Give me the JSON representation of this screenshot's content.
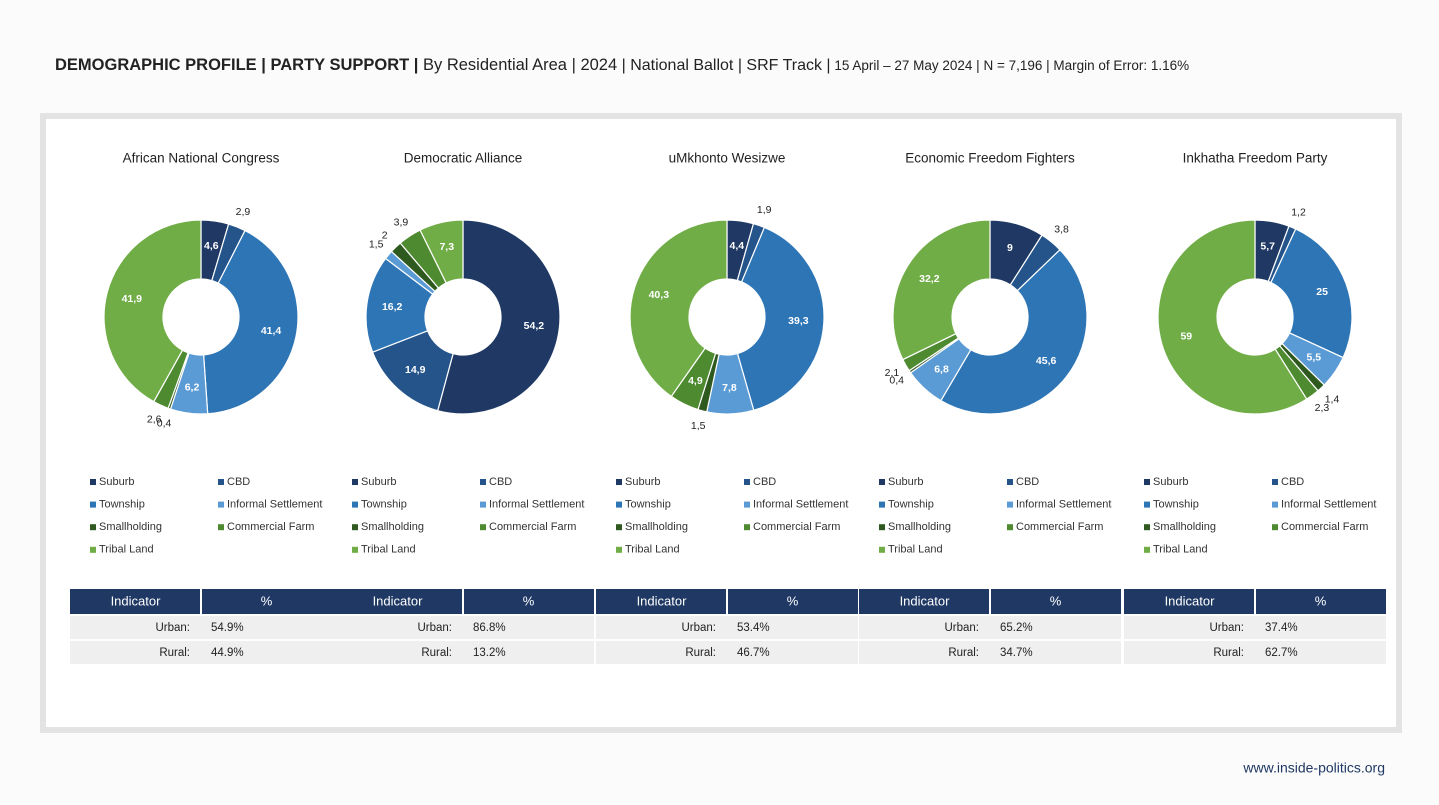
{
  "header": {
    "title": [
      "DEMOGRAPHIC PROFILE | PARTY SUPPORT |",
      " By Residential Area | 2024",
      " | National Ballot | SRF Track |",
      " 15 April – 27 May 2024 | N = 7,196 | Margin of Error: 1.16%"
    ]
  },
  "chart_data": [
    {
      "type": "donut",
      "title": "African National Congress",
      "categories": [
        "Suburb",
        "CBD",
        "Township",
        "Informal Settlement",
        "Smallholding",
        "Commercial Farm",
        "Tribal Land"
      ],
      "values": [
        4.6,
        2.9,
        41.4,
        6.2,
        0.4,
        2.6,
        41.9
      ],
      "value_labels": [
        "4,6",
        "2,9",
        "41,4",
        "6,2",
        "0,4",
        "2,6",
        "41,9"
      ],
      "colors": [
        "#1f3864",
        "#24548a",
        "#2e75b6",
        "#5b9bd5",
        "#2f5a1f",
        "#4e8a30",
        "#70ad47"
      ]
    },
    {
      "type": "donut",
      "title": "Democratic Alliance",
      "categories": [
        "Suburb",
        "CBD",
        "Township",
        "Informal Settlement",
        "Smallholding",
        "Commercial Farm",
        "Tribal Land"
      ],
      "values": [
        54.2,
        14.9,
        16.2,
        1.5,
        2,
        3.9,
        7.3
      ],
      "value_labels": [
        "54,2",
        "14,9",
        "16,2",
        "1,5",
        "2",
        "3,9",
        "7,3"
      ],
      "colors": [
        "#1f3864",
        "#24548a",
        "#2e75b6",
        "#5b9bd5",
        "#2f5a1f",
        "#4e8a30",
        "#70ad47"
      ]
    },
    {
      "type": "donut",
      "title": "uMkhonto Wesizwe",
      "categories": [
        "Suburb",
        "CBD",
        "Township",
        "Informal Settlement",
        "Smallholding",
        "Commercial Farm",
        "Tribal Land"
      ],
      "values": [
        4.4,
        1.9,
        39.3,
        7.8,
        1.5,
        4.9,
        40.3
      ],
      "value_labels": [
        "4,4",
        "1,9",
        "39,3",
        "7,8",
        "1,5",
        "4,9",
        "40,3"
      ],
      "colors": [
        "#1f3864",
        "#24548a",
        "#2e75b6",
        "#5b9bd5",
        "#2f5a1f",
        "#4e8a30",
        "#70ad47"
      ]
    },
    {
      "type": "donut",
      "title": "Economic Freedom Fighters",
      "categories": [
        "Suburb",
        "CBD",
        "Township",
        "Informal Settlement",
        "Smallholding",
        "Commercial Farm",
        "Tribal Land"
      ],
      "values": [
        9,
        3.8,
        45.6,
        6.8,
        0.4,
        2.1,
        32.2
      ],
      "value_labels": [
        "9",
        "3,8",
        "45,6",
        "6,8",
        "0,4",
        "2,1",
        "32,2"
      ],
      "colors": [
        "#1f3864",
        "#24548a",
        "#2e75b6",
        "#5b9bd5",
        "#2f5a1f",
        "#4e8a30",
        "#70ad47"
      ]
    },
    {
      "type": "donut",
      "title": "Inkhatha Freedom Party",
      "categories": [
        "Suburb",
        "CBD",
        "Township",
        "Informal Settlement",
        "Smallholding",
        "Commercial Farm",
        "Tribal Land"
      ],
      "values": [
        5.7,
        1.2,
        25,
        5.5,
        1.4,
        2.3,
        59
      ],
      "value_labels": [
        "5,7",
        "1,2",
        "25",
        "5,5",
        "1,4",
        "2,3",
        "59"
      ],
      "colors": [
        "#1f3864",
        "#24548a",
        "#2e75b6",
        "#5b9bd5",
        "#2f5a1f",
        "#4e8a30",
        "#70ad47"
      ]
    }
  ],
  "tables": [
    {
      "header": [
        "Indicator",
        "%"
      ],
      "rows": [
        [
          "Urban:",
          "54.9%"
        ],
        [
          "Rural:",
          "44.9%"
        ]
      ]
    },
    {
      "header": [
        "Indicator",
        "%"
      ],
      "rows": [
        [
          "Urban:",
          "86.8%"
        ],
        [
          "Rural:",
          "13.2%"
        ]
      ]
    },
    {
      "header": [
        "Indicator",
        "%"
      ],
      "rows": [
        [
          "Urban:",
          "53.4%"
        ],
        [
          "Rural:",
          "46.7%"
        ]
      ]
    },
    {
      "header": [
        "Indicator",
        "%"
      ],
      "rows": [
        [
          "Urban:",
          "65.2%"
        ],
        [
          "Rural:",
          "34.7%"
        ]
      ]
    },
    {
      "header": [
        "Indicator",
        "%"
      ],
      "rows": [
        [
          "Urban:",
          "37.4%"
        ],
        [
          "Rural:",
          "62.7%"
        ]
      ]
    }
  ],
  "footer": {
    "url": "www.inside-politics.org"
  }
}
